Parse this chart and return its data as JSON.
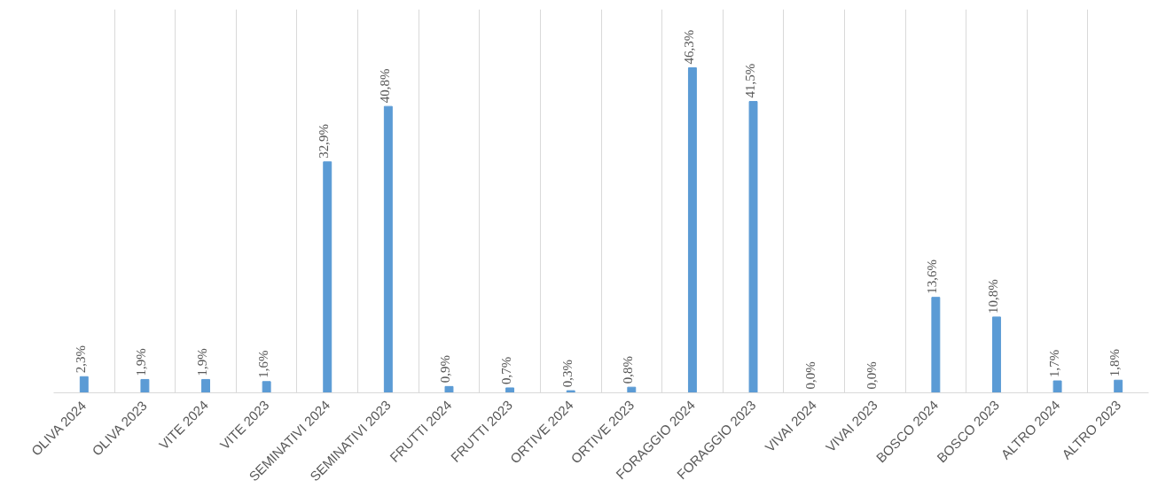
{
  "chart_data": {
    "type": "bar",
    "categories": [
      "OLIVA 2024",
      "OLIVA 2023",
      "VITE 2024",
      "VITE 2023",
      "SEMINATIVI 2024",
      "SEMINATIVI 2023",
      "FRUTTI 2024",
      "FRUTTI 2023",
      "ORTIVE 2024",
      "ORTIVE 2023",
      "FORAGGIO 2024",
      "FORAGGIO 2023",
      "VIVAI 2024",
      "VIVAI 2023",
      "BOSCO 2024",
      "BOSCO 2023",
      "ALTRO 2024",
      "ALTRO 2023"
    ],
    "values": [
      2.3,
      1.9,
      1.9,
      1.6,
      32.9,
      40.8,
      0.9,
      0.7,
      0.3,
      0.8,
      46.3,
      41.5,
      0.0,
      0.0,
      13.6,
      10.8,
      1.7,
      1.8
    ],
    "value_labels": [
      "2,3%",
      "1,9%",
      "1,9%",
      "1,6%",
      "32,9%",
      "40,8%",
      "0,9%",
      "0,7%",
      "0,3%",
      "0,8%",
      "46,3%",
      "41,5%",
      "0,0%",
      "0,0%",
      "13,6%",
      "10,8%",
      "1,7%",
      "1,8%"
    ],
    "color": "#5b9bd5",
    "grid": "x"
  }
}
